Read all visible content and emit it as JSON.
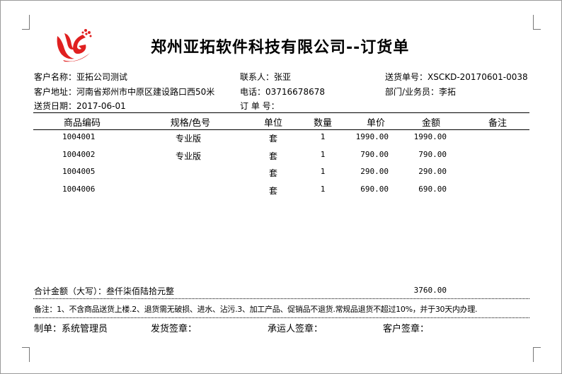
{
  "company_title": "郑州亚拓软件科技有限公司--订货单",
  "logo": {
    "name": "yatuo-logo",
    "color": "#e02020"
  },
  "header": {
    "customer_name": "客户名称：亚拓公司测试",
    "contact": "联系人：张亚",
    "delivery_no": "送货单号：XSCKD-20170601-0038",
    "customer_address": "客户地址：河南省郑州市中原区建设路口西50米",
    "phone": "电话：03716678678",
    "dept_salesperson": "部门/业务员：李拓",
    "delivery_date": "送货日期：2017-06-01",
    "order_no": "订 单 号："
  },
  "table": {
    "columns": [
      "商品编码",
      "规格/色号",
      "单位",
      "数量",
      "单价",
      "金额",
      "备注"
    ],
    "rows": [
      {
        "code": "1004001",
        "spec": "专业版",
        "unit": "套",
        "qty": "1",
        "price": "1990.00",
        "amount": "1990.00",
        "note": ""
      },
      {
        "code": "1004002",
        "spec": "专业版",
        "unit": "套",
        "qty": "1",
        "price": "790.00",
        "amount": "790.00",
        "note": ""
      },
      {
        "code": "1004005",
        "spec": "",
        "unit": "套",
        "qty": "1",
        "price": "290.00",
        "amount": "290.00",
        "note": ""
      },
      {
        "code": "1004006",
        "spec": "",
        "unit": "套",
        "qty": "1",
        "price": "690.00",
        "amount": "690.00",
        "note": ""
      }
    ]
  },
  "total": {
    "label": "合计金额（大写）：叁仟柒佰陆拾元整",
    "amount": "3760.00"
  },
  "remarks": "备注：1、不含商品送货上楼.2、退货需无破损、进水、沾污.3、加工产品、促销品不退货.常规品退货不超过10%，并于30天内办理.",
  "footer": {
    "maker": "制单：系统管理员",
    "shipper_sign": "发货签章：",
    "carrier_sign": "承运人签章：",
    "customer_sign": "客户签章："
  }
}
